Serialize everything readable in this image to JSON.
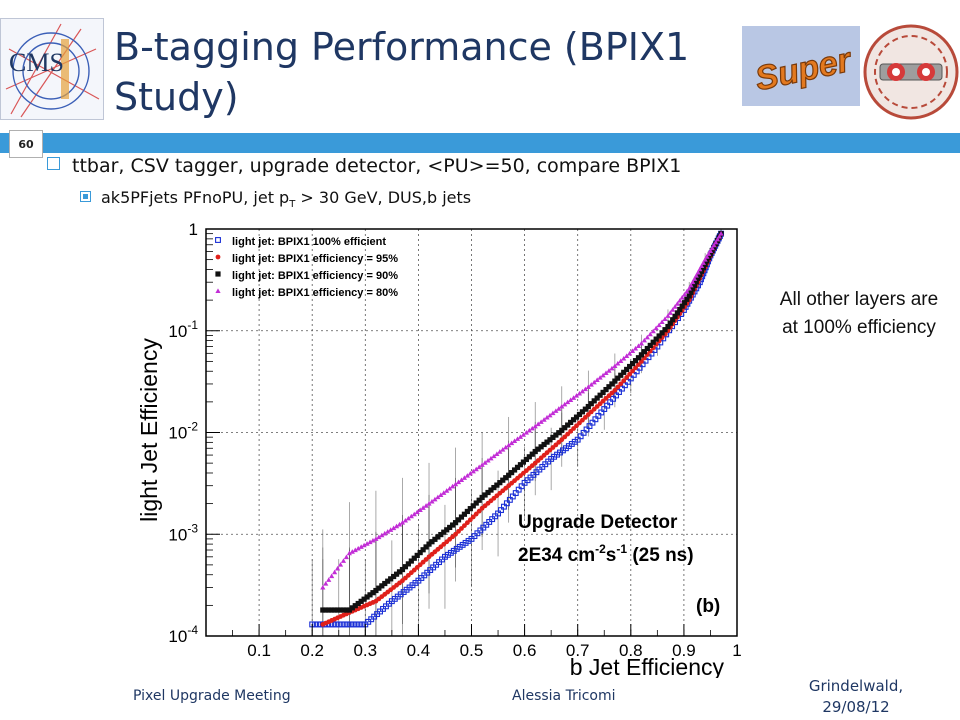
{
  "slide": {
    "title": "B-tagging Performance (BPIX1 Study)",
    "page_number": "60",
    "bullet_main": "ttbar, CSV tagger, upgrade detector, <PU>=50, compare BPIX1",
    "bullet_sub_pre": "ak5PFjets PFnoPU, jet p",
    "bullet_sub_subscript": "T",
    "bullet_sub_post": " > 30 GeV, DUS,b jets",
    "side_note": "All other layers are at 100% efficiency",
    "footer_left": "Pixel Upgrade Meeting",
    "footer_center": "Alessia Tricomi",
    "footer_right_line1": "Grindelwald,",
    "footer_right_line2": "29/08/12",
    "logo_cms_text": "CMS",
    "logo_super_text": "Super",
    "colors": {
      "title": "#1f3763",
      "bar": "#3a9ad9"
    }
  },
  "chart_data": {
    "type": "scatter",
    "xlabel": "b Jet Efficiency",
    "ylabel": "light Jet Efficiency",
    "xlim": [
      0,
      1
    ],
    "ylim": [
      0.0001,
      1
    ],
    "log_y": true,
    "grid": true,
    "x_ticks": [
      "0.1",
      "0.2",
      "0.3",
      "0.4",
      "0.5",
      "0.6",
      "0.7",
      "0.8",
      "0.9",
      "1"
    ],
    "y_ticks": [
      {
        "base": "10",
        "exp": "-4"
      },
      {
        "base": "10",
        "exp": "-3"
      },
      {
        "base": "10",
        "exp": "-2"
      },
      {
        "base": "10",
        "exp": "-1"
      },
      {
        "base": "1",
        "exp": ""
      }
    ],
    "legend_position": "top-left",
    "annotation_line1": "Upgrade Detector",
    "annotation_line2_a": "2E34 cm",
    "annotation_line2_sup1": "-2",
    "annotation_line2_b": "s",
    "annotation_line2_sup2": "-1",
    "annotation_line2_c": " (25 ns)",
    "annotation_tag": "(b)",
    "series": [
      {
        "name": "light jet: BPIX1 100% efficient",
        "color": "#1a2fd6",
        "marker": "open-square",
        "points": [
          [
            0.2,
            0.00013
          ],
          [
            0.25,
            0.00013
          ],
          [
            0.3,
            0.00013
          ],
          [
            0.35,
            0.00022
          ],
          [
            0.4,
            0.00035
          ],
          [
            0.45,
            0.0006
          ],
          [
            0.5,
            0.0009
          ],
          [
            0.55,
            0.0016
          ],
          [
            0.6,
            0.0032
          ],
          [
            0.65,
            0.0055
          ],
          [
            0.7,
            0.0085
          ],
          [
            0.75,
            0.017
          ],
          [
            0.8,
            0.034
          ],
          [
            0.85,
            0.07
          ],
          [
            0.9,
            0.16
          ],
          [
            0.93,
            0.3
          ],
          [
            0.95,
            0.55
          ],
          [
            0.97,
            0.9
          ]
        ]
      },
      {
        "name": "light jet: BPIX1 efficiency = 95%",
        "color": "#e0201a",
        "marker": "dot",
        "points": [
          [
            0.22,
            0.00013
          ],
          [
            0.27,
            0.00017
          ],
          [
            0.32,
            0.00022
          ],
          [
            0.37,
            0.00035
          ],
          [
            0.42,
            0.0006
          ],
          [
            0.47,
            0.001
          ],
          [
            0.52,
            0.0018
          ],
          [
            0.57,
            0.003
          ],
          [
            0.62,
            0.005
          ],
          [
            0.67,
            0.0085
          ],
          [
            0.72,
            0.015
          ],
          [
            0.77,
            0.026
          ],
          [
            0.82,
            0.05
          ],
          [
            0.87,
            0.1
          ],
          [
            0.91,
            0.2
          ],
          [
            0.94,
            0.42
          ],
          [
            0.97,
            0.9
          ]
        ]
      },
      {
        "name": "light jet: BPIX1 efficiency = 90%",
        "color": "#111111",
        "marker": "square",
        "points": [
          [
            0.22,
            0.00018
          ],
          [
            0.27,
            0.00018
          ],
          [
            0.32,
            0.00028
          ],
          [
            0.37,
            0.00045
          ],
          [
            0.42,
            0.0008
          ],
          [
            0.47,
            0.0013
          ],
          [
            0.52,
            0.0023
          ],
          [
            0.57,
            0.0038
          ],
          [
            0.62,
            0.0065
          ],
          [
            0.67,
            0.0105
          ],
          [
            0.72,
            0.018
          ],
          [
            0.77,
            0.032
          ],
          [
            0.82,
            0.058
          ],
          [
            0.87,
            0.11
          ],
          [
            0.91,
            0.22
          ],
          [
            0.94,
            0.45
          ],
          [
            0.97,
            0.9
          ]
        ]
      },
      {
        "name": "light jet: BPIX1 efficiency = 80%",
        "color": "#c22dd6",
        "marker": "triangle",
        "points": [
          [
            0.22,
            0.0003
          ],
          [
            0.27,
            0.00065
          ],
          [
            0.32,
            0.0009
          ],
          [
            0.37,
            0.0013
          ],
          [
            0.42,
            0.002
          ],
          [
            0.47,
            0.0031
          ],
          [
            0.52,
            0.0048
          ],
          [
            0.57,
            0.0075
          ],
          [
            0.62,
            0.0115
          ],
          [
            0.67,
            0.018
          ],
          [
            0.72,
            0.028
          ],
          [
            0.77,
            0.045
          ],
          [
            0.82,
            0.075
          ],
          [
            0.87,
            0.14
          ],
          [
            0.91,
            0.26
          ],
          [
            0.94,
            0.5
          ],
          [
            0.97,
            0.9
          ]
        ]
      }
    ]
  }
}
